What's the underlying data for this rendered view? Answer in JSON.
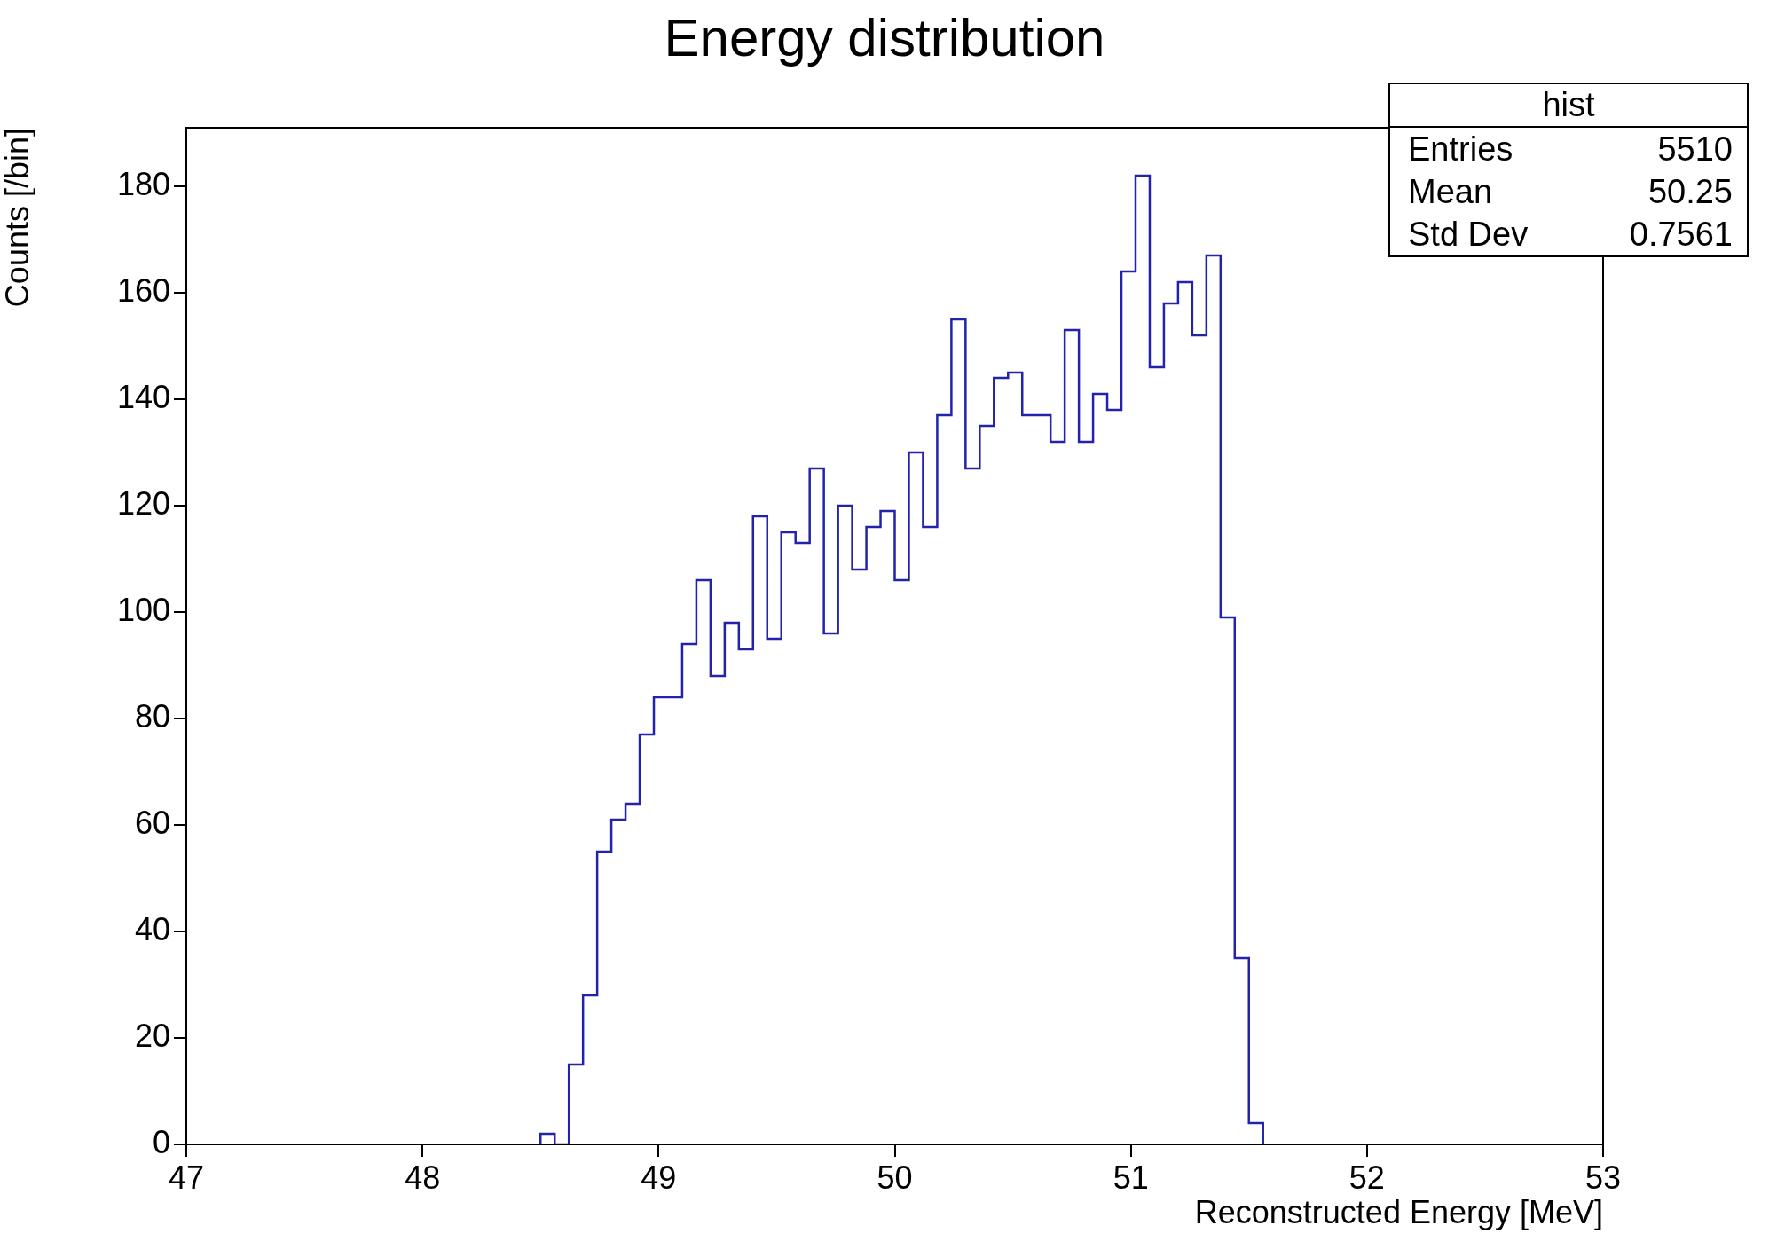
{
  "chart_data": {
    "type": "histogram",
    "title": "Energy distribution",
    "xlabel": "Reconstructed Energy [MeV]",
    "ylabel": "Counts [/bin]",
    "bins": [
      48.5,
      48.56,
      48.62,
      48.68,
      48.74,
      48.8,
      48.86,
      48.92,
      48.98,
      49.04,
      49.1,
      49.16,
      49.22,
      49.28,
      49.34,
      49.4,
      49.46,
      49.52,
      49.58,
      49.64,
      49.7,
      49.76,
      49.82,
      49.88,
      49.94,
      50.0,
      50.06,
      50.12,
      50.18,
      50.24,
      50.3,
      50.36,
      50.42,
      50.48,
      50.54,
      50.6,
      50.66,
      50.72,
      50.78,
      50.84,
      50.9,
      50.96,
      51.02,
      51.08,
      51.14,
      51.2,
      51.26,
      51.32,
      51.38,
      51.44,
      51.5,
      51.56
    ],
    "values": [
      2,
      0,
      15,
      28,
      55,
      61,
      64,
      77,
      84,
      84,
      94,
      106,
      88,
      98,
      93,
      118,
      95,
      115,
      113,
      127,
      96,
      120,
      108,
      116,
      119,
      106,
      130,
      116,
      137,
      155,
      127,
      135,
      144,
      145,
      137,
      137,
      132,
      153,
      132,
      141,
      138,
      164,
      182,
      146,
      158,
      162,
      152,
      167,
      99,
      35,
      4
    ],
    "color": "#2222aa",
    "xlim": [
      47,
      53
    ],
    "xticks": [
      47,
      48,
      49,
      50,
      51,
      52,
      53
    ],
    "ylim": [
      0,
      191
    ],
    "yticks": [
      0,
      20,
      40,
      60,
      80,
      100,
      120,
      140,
      160,
      180
    ],
    "annotations": [
      "hist",
      "Entries",
      "5510",
      "Mean",
      "50.25",
      "Std Dev",
      "0.7561"
    ]
  }
}
